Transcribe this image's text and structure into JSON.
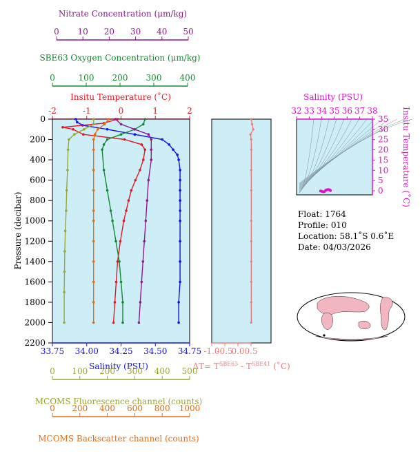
{
  "colors": {
    "plot_bg": "#cdeef7",
    "nitrate": "#8b1a8b",
    "oxygen": "#118a2e",
    "temperature": "#e8141e",
    "salinity": "#1010e8",
    "fluorescence": "#9aa532",
    "backscatter": "#e06d1a",
    "dt": "#f07a7a",
    "ts": "#e010c8",
    "map_land": "#f2b6c0",
    "map_ocean": "#ffffff"
  },
  "axes": {
    "nitrate": {
      "label": "Nitrate Concentration (μm/kg)",
      "ticks": [
        "0",
        "10",
        "20",
        "30",
        "40",
        "50"
      ]
    },
    "oxygen": {
      "label": "SBE63 Oxygen Concentration (μm/kg)",
      "ticks": [
        "0",
        "100",
        "200",
        "300",
        "400"
      ]
    },
    "temperature": {
      "label": "Insitu Temperature (˚C)",
      "ticks": [
        "-2",
        "-1",
        "0",
        "1",
        "2"
      ]
    },
    "salinity": {
      "label": "Salinity (PSU)",
      "ticks": [
        "33.75",
        "34.00",
        "34.25",
        "34.50",
        "34.75"
      ]
    },
    "pressure": {
      "label": "Pressure (decibar)",
      "ticks": [
        "0",
        "200",
        "400",
        "600",
        "800",
        "1000",
        "1200",
        "1400",
        "1600",
        "1800",
        "2000",
        "2200"
      ]
    },
    "fluorescence": {
      "label": "MCOMS Fluorescence channel (counts)",
      "ticks": [
        "0",
        "100",
        "200",
        "300",
        "400",
        "500"
      ]
    },
    "backscatter": {
      "label": "MCOMS Backscatter channel (counts)",
      "ticks": [
        "0",
        "200",
        "400",
        "600",
        "800",
        "1000"
      ]
    },
    "dt": {
      "label_main": "ΔT= T",
      "label_sup1": "SBE63",
      "label_mid": " - T",
      "label_sup2": "SBE41",
      "label_end": " (˚C)",
      "ticks": [
        "-1.0",
        "-0.5",
        "0.0",
        "0.5"
      ]
    },
    "ts_salinity": {
      "label": "Salinity (PSU)",
      "ticks": [
        "32",
        "33",
        "34",
        "35",
        "36",
        "37",
        "38"
      ]
    },
    "ts_temperature": {
      "label": "Insitu Temperature (˚C)",
      "ticks": [
        "0",
        "5",
        "10",
        "15",
        "20",
        "25",
        "30",
        "35"
      ]
    }
  },
  "info": {
    "float": "Float:  1764",
    "profile": "Profile:  010",
    "location": "Location:  58.1˚S   0.6˚E",
    "date": "Date:  04/03/2026"
  },
  "chart_data": {
    "type": "line",
    "x_label": "Pressure (decibar)",
    "pressure_range": [
      0,
      2200
    ],
    "series": [
      {
        "name": "Salinity (PSU)",
        "range": [
          33.75,
          34.75
        ],
        "points": [
          [
            0,
            33.92
          ],
          [
            30,
            33.93
          ],
          [
            60,
            33.97
          ],
          [
            100,
            34.15
          ],
          [
            150,
            34.35
          ],
          [
            200,
            34.55
          ],
          [
            250,
            34.6
          ],
          [
            300,
            34.63
          ],
          [
            350,
            34.66
          ],
          [
            400,
            34.67
          ],
          [
            500,
            34.68
          ],
          [
            600,
            34.68
          ],
          [
            700,
            34.68
          ],
          [
            800,
            34.68
          ],
          [
            900,
            34.68
          ],
          [
            1000,
            34.68
          ],
          [
            1200,
            34.68
          ],
          [
            1400,
            34.68
          ],
          [
            1600,
            34.68
          ],
          [
            1800,
            34.67
          ],
          [
            2000,
            34.67
          ]
        ]
      },
      {
        "name": "Insitu Temperature (˚C)",
        "range": [
          -2,
          2
        ],
        "points": [
          [
            0,
            -0.1
          ],
          [
            40,
            -0.5
          ],
          [
            80,
            -1.7
          ],
          [
            100,
            -1.4
          ],
          [
            150,
            -1.1
          ],
          [
            200,
            0.1
          ],
          [
            250,
            0.6
          ],
          [
            300,
            0.7
          ],
          [
            400,
            0.65
          ],
          [
            500,
            0.55
          ],
          [
            600,
            0.42
          ],
          [
            700,
            0.3
          ],
          [
            800,
            0.22
          ],
          [
            900,
            0.15
          ],
          [
            1000,
            0.08
          ],
          [
            1200,
            -0.02
          ],
          [
            1400,
            -0.1
          ],
          [
            1600,
            -0.14
          ],
          [
            1800,
            -0.18
          ],
          [
            2000,
            -0.22
          ]
        ]
      },
      {
        "name": "SBE63 Oxygen Concentration (μm/kg)",
        "range": [
          0,
          400
        ],
        "points": [
          [
            0,
            270
          ],
          [
            50,
            265
          ],
          [
            100,
            240
          ],
          [
            150,
            200
          ],
          [
            200,
            160
          ],
          [
            250,
            150
          ],
          [
            300,
            145
          ],
          [
            500,
            150
          ],
          [
            700,
            160
          ],
          [
            900,
            170
          ],
          [
            1000,
            175
          ],
          [
            1200,
            185
          ],
          [
            1400,
            195
          ],
          [
            1600,
            200
          ],
          [
            1800,
            205
          ],
          [
            2000,
            205
          ]
        ]
      },
      {
        "name": "Nitrate Concentration (μm/kg)",
        "range": [
          0,
          50
        ],
        "points": [
          [
            0,
            23
          ],
          [
            50,
            25
          ],
          [
            100,
            30
          ],
          [
            150,
            35
          ],
          [
            200,
            36
          ],
          [
            300,
            36
          ],
          [
            400,
            36
          ],
          [
            600,
            35
          ],
          [
            800,
            34.5
          ],
          [
            1000,
            34
          ],
          [
            1200,
            33.5
          ],
          [
            1400,
            33
          ],
          [
            1600,
            32.5
          ],
          [
            1800,
            32
          ],
          [
            2000,
            31.5
          ]
        ]
      },
      {
        "name": "MCOMS Fluorescence channel (counts)",
        "range": [
          0,
          500
        ],
        "points": [
          [
            0,
            150
          ],
          [
            50,
            150
          ],
          [
            100,
            115
          ],
          [
            150,
            80
          ],
          [
            200,
            60
          ],
          [
            300,
            57
          ],
          [
            500,
            55
          ],
          [
            700,
            52
          ],
          [
            900,
            50
          ],
          [
            1100,
            47
          ],
          [
            1300,
            45
          ],
          [
            1500,
            44
          ],
          [
            1700,
            43
          ],
          [
            2000,
            43
          ]
        ]
      },
      {
        "name": "MCOMS Backscatter channel (counts)",
        "range": [
          0,
          1000
        ],
        "points": [
          [
            0,
            410
          ],
          [
            50,
            380
          ],
          [
            100,
            330
          ],
          [
            150,
            310
          ],
          [
            200,
            300
          ],
          [
            300,
            300
          ],
          [
            500,
            300
          ],
          [
            700,
            300
          ],
          [
            900,
            300
          ],
          [
            1000,
            300
          ],
          [
            1200,
            300
          ],
          [
            1400,
            300
          ],
          [
            1600,
            300
          ],
          [
            1800,
            300
          ],
          [
            2000,
            300
          ]
        ]
      },
      {
        "name": "ΔT (˚C)",
        "range": [
          -1.0,
          0.5
        ],
        "points": [
          [
            0,
            0.0
          ],
          [
            50,
            0.02
          ],
          [
            100,
            0.05
          ],
          [
            150,
            -0.02
          ],
          [
            200,
            0.0
          ],
          [
            300,
            0.0
          ],
          [
            500,
            0.0
          ],
          [
            700,
            0.0
          ],
          [
            1000,
            0.0
          ],
          [
            1200,
            0.0
          ],
          [
            1400,
            0.0
          ],
          [
            1600,
            0.0
          ],
          [
            1800,
            0.0
          ],
          [
            2000,
            0.0
          ]
        ]
      }
    ],
    "ts_diagram": {
      "salinity_range": [
        32,
        38
      ],
      "temperature_range": [
        -2,
        35
      ],
      "points": [
        [
          33.9,
          -0.1
        ],
        [
          34.0,
          -0.3
        ],
        [
          34.1,
          -0.5
        ],
        [
          34.2,
          -0.4
        ],
        [
          34.3,
          0.2
        ],
        [
          34.4,
          0.5
        ],
        [
          34.5,
          0.6
        ],
        [
          34.6,
          0.5
        ],
        [
          34.65,
          0.3
        ],
        [
          34.68,
          0.1
        ]
      ]
    }
  }
}
